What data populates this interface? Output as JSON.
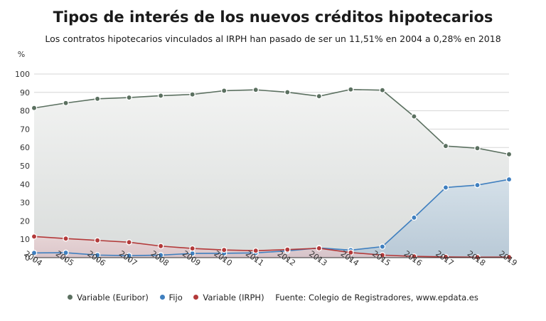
{
  "title": "Tipos de interés de los nuevos créditos hipotecarios",
  "subtitle": "Los contratos hipotecarios vinculados al IRPH han pasado de ser un 11,51% en 2004 a 0,28% en 2018",
  "source": "Fuente: Colegio de Registradores, www.epdata.es",
  "colors": {
    "euribor": "#5b7060",
    "fijo": "#3f7fbf",
    "irph": "#b33a3a"
  },
  "chart_data": {
    "type": "area",
    "x": [
      "2004",
      "2005",
      "2006",
      "2007",
      "2008",
      "2009",
      "2010",
      "2011",
      "2012",
      "2013",
      "2014",
      "2015",
      "2016",
      "2017",
      "2018",
      "2019"
    ],
    "series": [
      {
        "name": "Variable (Euribor)",
        "values": [
          81.5,
          84.2,
          86.5,
          87.2,
          88.2,
          88.9,
          90.9,
          91.4,
          90.1,
          87.9,
          91.6,
          91.2,
          76.9,
          60.8,
          59.6,
          56.3
        ]
      },
      {
        "name": "Fijo",
        "values": [
          2.6,
          2.7,
          1.4,
          1.1,
          1.4,
          2.3,
          2.4,
          2.6,
          3.7,
          5.3,
          4.1,
          6.0,
          21.8,
          38.2,
          39.5,
          42.6
        ]
      },
      {
        "name": "Variable (IRPH)",
        "values": [
          11.51,
          10.4,
          9.4,
          8.4,
          6.3,
          5.0,
          4.2,
          3.8,
          4.4,
          5.1,
          2.8,
          1.4,
          0.7,
          0.4,
          0.28,
          0.3
        ]
      }
    ],
    "ylabel": "%",
    "ylim": [
      0,
      100
    ],
    "yticks": [
      0,
      10,
      20,
      30,
      40,
      50,
      60,
      70,
      80,
      90,
      100
    ],
    "grid": true,
    "legend": "bottom"
  }
}
